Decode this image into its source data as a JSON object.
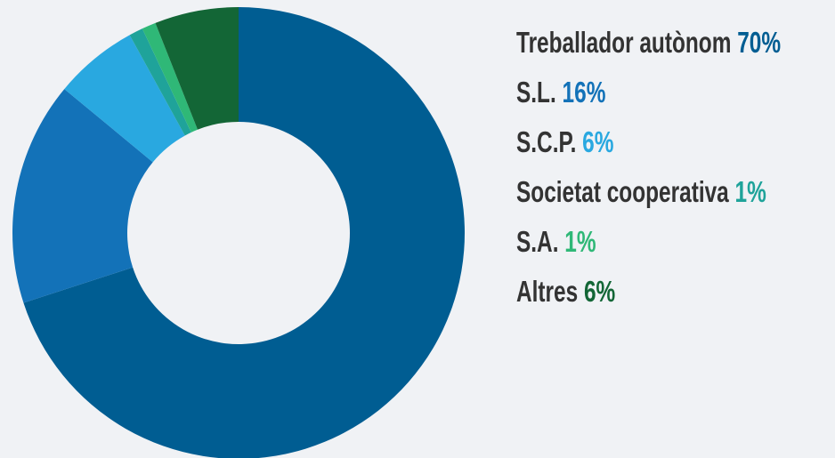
{
  "chart_data": {
    "type": "donut",
    "categories": [
      "Treballador autònom",
      "S.L.",
      "S.C.P.",
      "Societat cooperativa",
      "S.A.",
      "Altres"
    ],
    "values": [
      70,
      16,
      6,
      1,
      1,
      6
    ],
    "value_labels": [
      "70%",
      "16%",
      "6%",
      "1%",
      "1%",
      "6%"
    ],
    "colors": [
      "#005d92",
      "#1372b8",
      "#29a8e0",
      "#1fa39a",
      "#2fb877",
      "#136636"
    ]
  }
}
